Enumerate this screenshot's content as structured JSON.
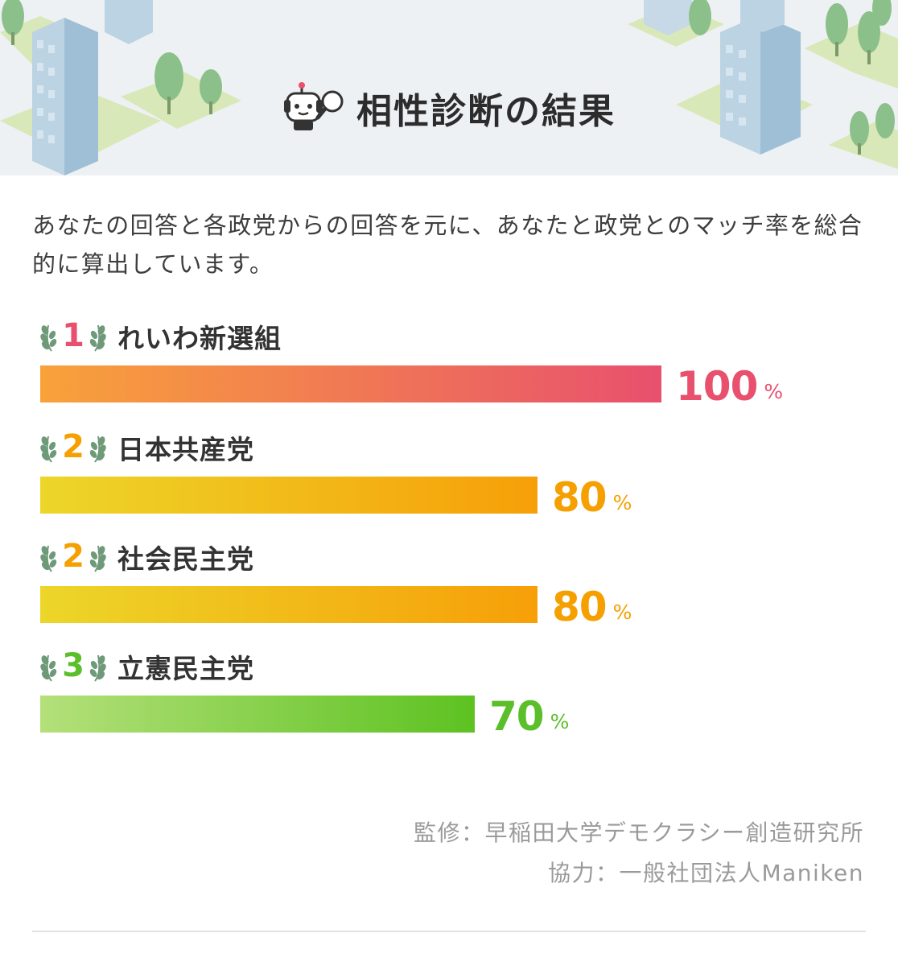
{
  "header": {
    "title": "相性診断の結果",
    "mascot_icon": "robot-mascot-with-magnifier"
  },
  "intro": {
    "text": "あなたの回答と各政党からの回答を元に、あなたと政党とのマッチ率を総合的に算出しています。"
  },
  "results": [
    {
      "rank": "1",
      "party": "れいわ新選組",
      "percent": 100,
      "percent_text": "100",
      "sign": "%",
      "color": "#e8506e",
      "gradient": [
        "#f8a23a",
        "#e8506e"
      ]
    },
    {
      "rank": "2",
      "party": "日本共産党",
      "percent": 80,
      "percent_text": "80",
      "sign": "%",
      "color": "#f5a000",
      "gradient": [
        "#ecd629",
        "#f79f08"
      ]
    },
    {
      "rank": "2",
      "party": "社会民主党",
      "percent": 80,
      "percent_text": "80",
      "sign": "%",
      "color": "#f5a000",
      "gradient": [
        "#ecd629",
        "#f79f08"
      ]
    },
    {
      "rank": "3",
      "party": "立憲民主党",
      "percent": 70,
      "percent_text": "70",
      "sign": "%",
      "color": "#5bbf2a",
      "gradient": [
        "#b4e07a",
        "#5dc221"
      ]
    }
  ],
  "credits": {
    "supervision": "監修：早稲田大学デモクラシー創造研究所",
    "cooperation": "協力：一般社団法人Maniken"
  },
  "colors": {
    "laurel": "#6f9a7a",
    "title": "#2c2c2c",
    "credits": "#9a9a9a"
  }
}
